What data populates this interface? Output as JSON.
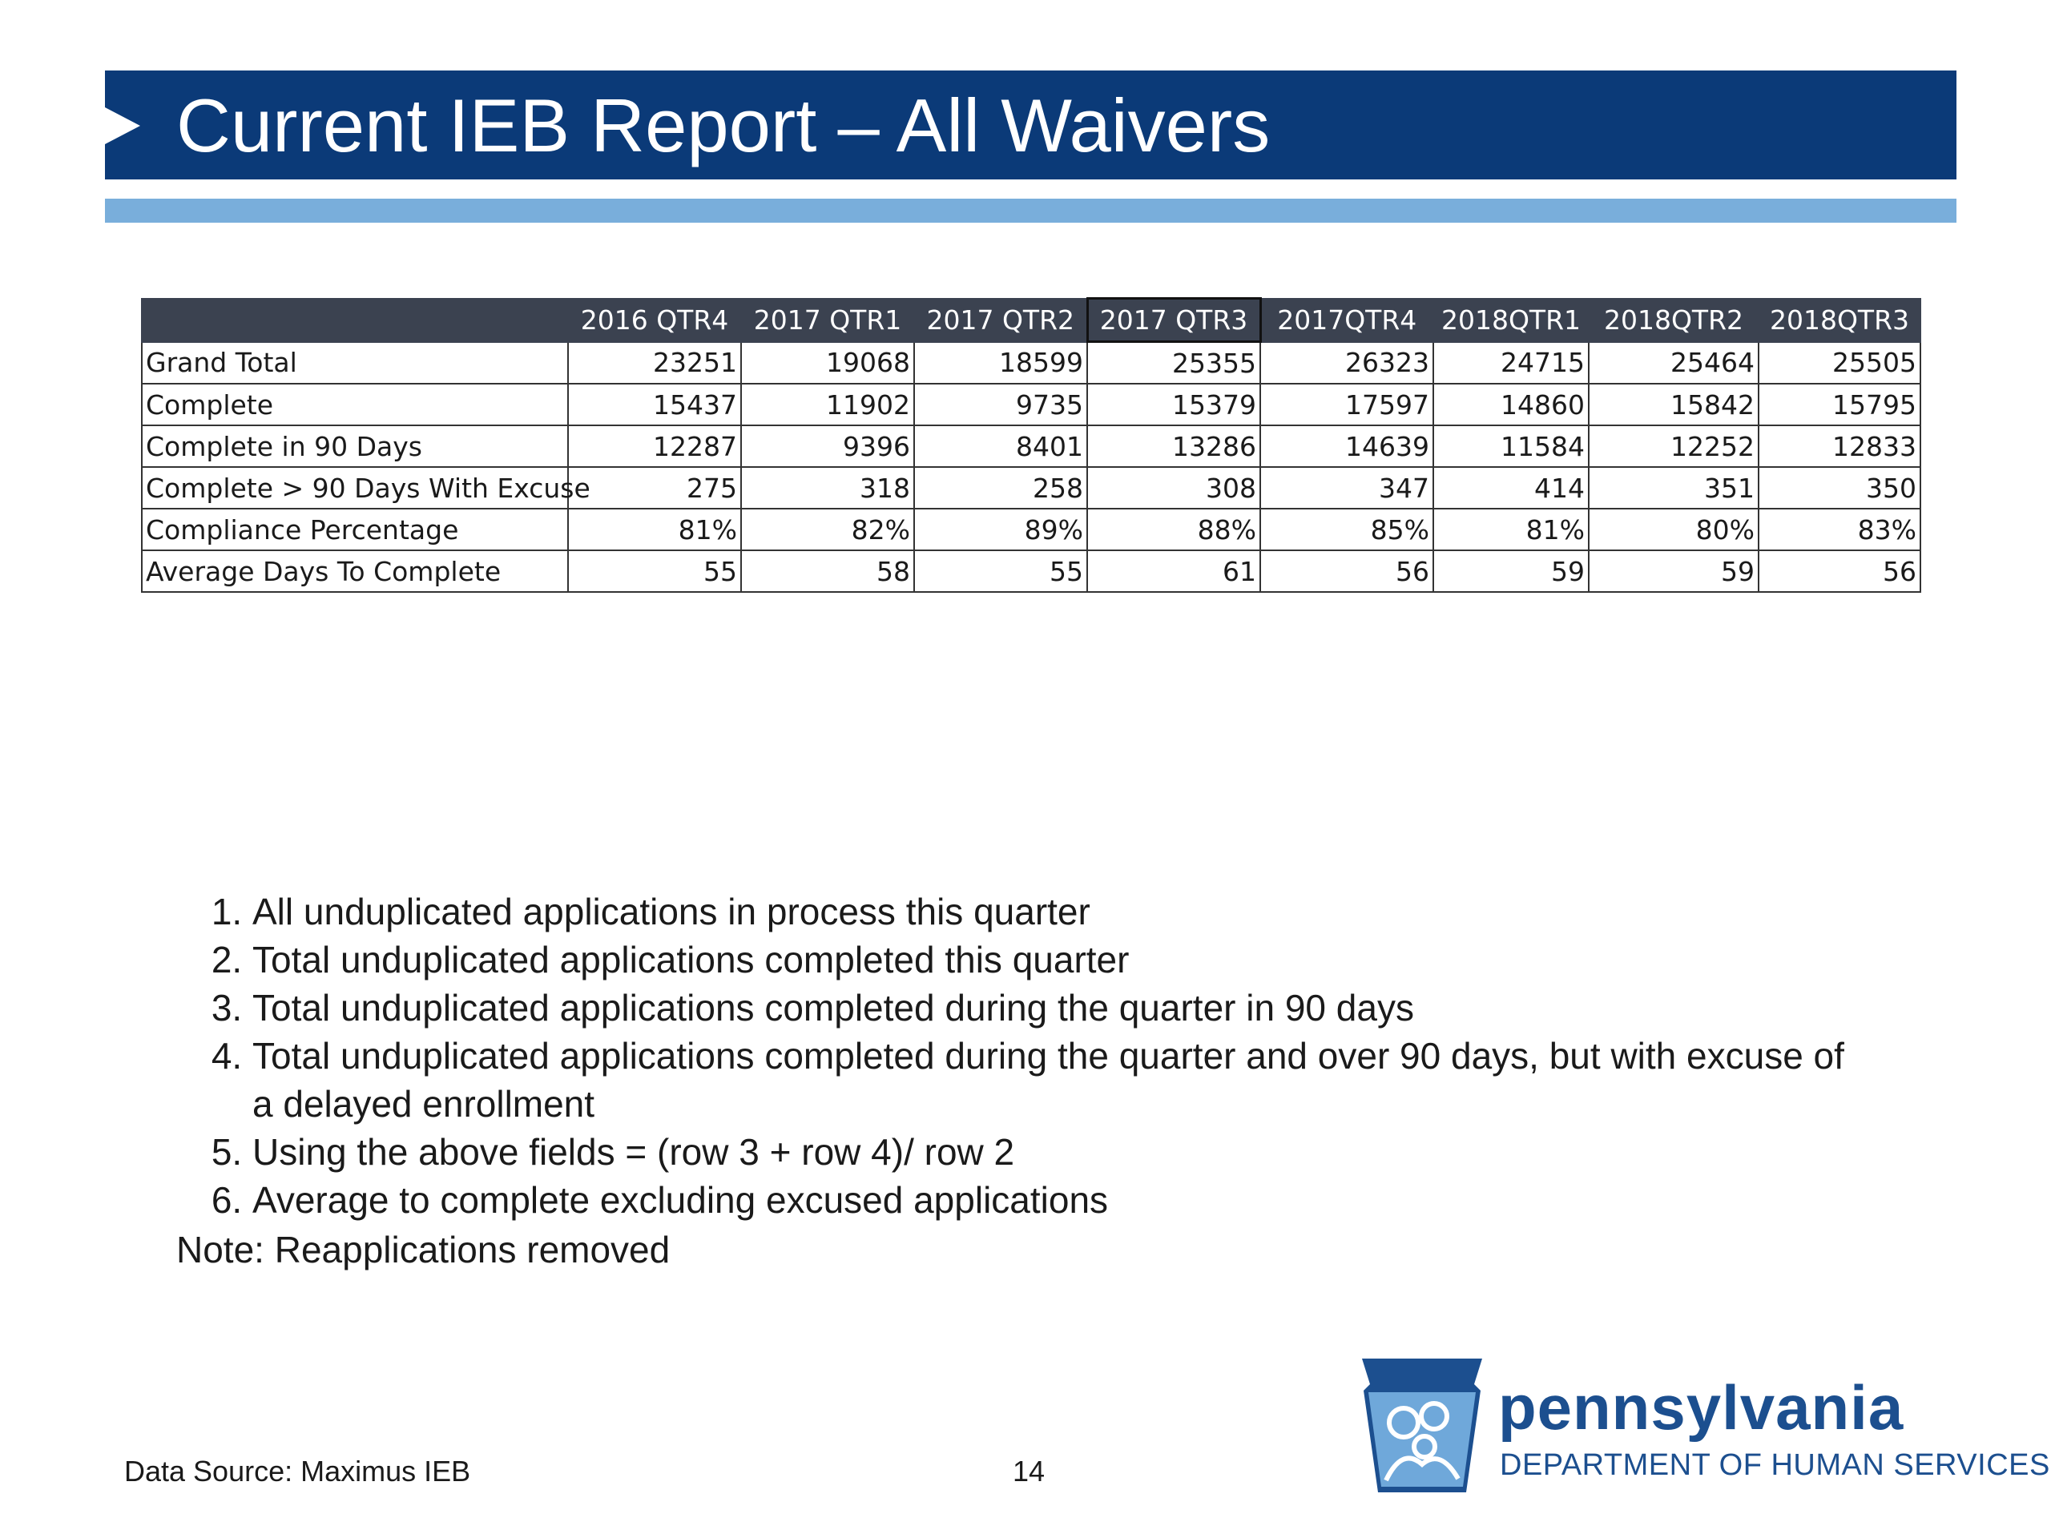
{
  "title": "Current IEB Report – All Waivers",
  "table": {
    "headers": [
      "",
      "2016 QTR4",
      "2017 QTR1",
      "2017 QTR2",
      "2017 QTR3",
      "2017QTR4",
      "2018QTR1",
      "2018QTR2",
      "2018QTR3"
    ],
    "rows": [
      {
        "label": "Grand Total",
        "values": [
          "23251",
          "19068",
          "18599",
          "25355",
          "26323",
          "24715",
          "25464",
          "25505"
        ]
      },
      {
        "label": "Complete",
        "values": [
          "15437",
          "11902",
          "9735",
          "15379",
          "17597",
          "14860",
          "15842",
          "15795"
        ]
      },
      {
        "label": "Complete in 90 Days",
        "values": [
          "12287",
          "9396",
          "8401",
          "13286",
          "14639",
          "11584",
          "12252",
          "12833"
        ]
      },
      {
        "label": "Complete > 90 Days With Excuse",
        "values": [
          "275",
          "318",
          "258",
          "308",
          "347",
          "414",
          "351",
          "350"
        ]
      },
      {
        "label": "Compliance Percentage",
        "values": [
          "81%",
          "82%",
          "89%",
          "88%",
          "85%",
          "81%",
          "80%",
          "83%"
        ]
      },
      {
        "label": "Average Days To Complete",
        "values": [
          "55",
          "58",
          "55",
          "61",
          "56",
          "59",
          "59",
          "56"
        ]
      }
    ]
  },
  "notes": [
    "All unduplicated applications in process this quarter",
    "Total unduplicated applications completed this quarter",
    "Total unduplicated applications completed during the quarter in 90 days",
    "Total unduplicated applications completed during the quarter and over 90 days, but with excuse of a delayed enrollment",
    "Using the above fields = (row 3 + row 4)/ row 2",
    "Average to complete excluding excused applications"
  ],
  "note_footer": "Note: Reapplications removed",
  "data_source": "Data Source: Maximus IEB",
  "page_number": "14",
  "logo": {
    "name": "pennsylvania",
    "department": "DEPARTMENT OF HUMAN SERVICES"
  },
  "colors": {
    "title_bar": "#0b3a78",
    "accent_bar": "#79aedb",
    "table_header": "#3b4250",
    "logo": "#1c4f8f"
  }
}
